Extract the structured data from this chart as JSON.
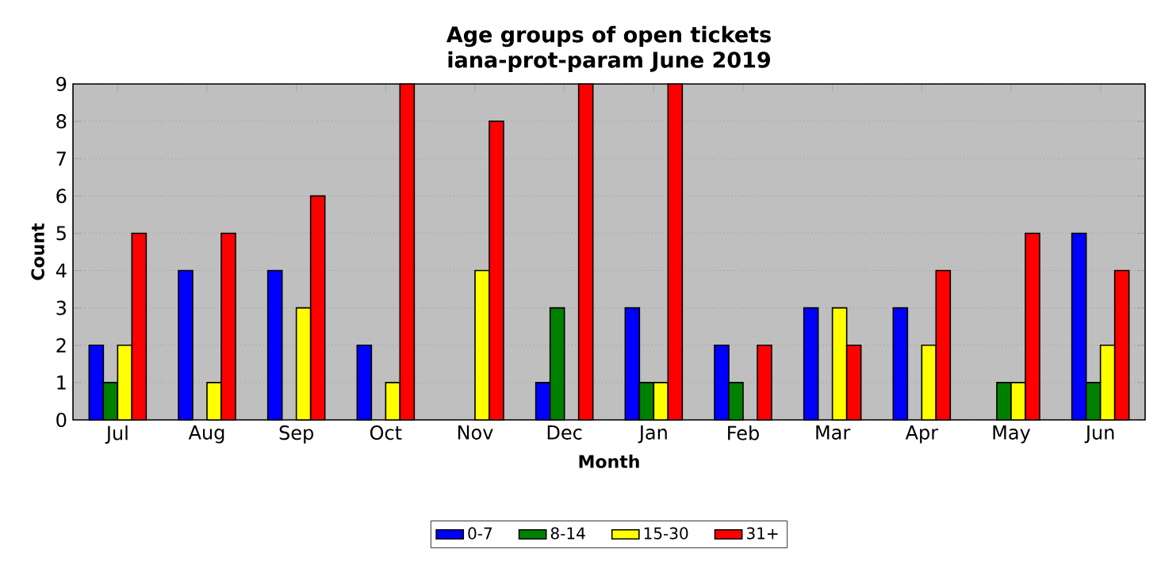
{
  "chart_data": {
    "type": "bar",
    "title": "Age groups of open tickets",
    "subtitle": "iana-prot-param June 2019",
    "xlabel": "Month",
    "ylabel": "Count",
    "categories": [
      "Jul",
      "Aug",
      "Sep",
      "Oct",
      "Nov",
      "Dec",
      "Jan",
      "Feb",
      "Mar",
      "Apr",
      "May",
      "Jun"
    ],
    "series": [
      {
        "name": "0-7",
        "color": "#0000ff",
        "values": [
          2,
          4,
          4,
          2,
          0,
          1,
          3,
          2,
          3,
          3,
          0,
          5
        ]
      },
      {
        "name": "8-14",
        "color": "#008000",
        "values": [
          1,
          0,
          0,
          0,
          0,
          3,
          1,
          1,
          0,
          0,
          1,
          1
        ]
      },
      {
        "name": "15-30",
        "color": "#ffff00",
        "values": [
          2,
          1,
          3,
          1,
          4,
          0,
          1,
          0,
          3,
          2,
          1,
          2
        ]
      },
      {
        "name": "31+",
        "color": "#ff0000",
        "values": [
          5,
          5,
          6,
          9,
          8,
          9,
          9,
          2,
          2,
          4,
          5,
          4
        ]
      }
    ],
    "ylim": [
      0,
      9
    ],
    "yticks": [
      0,
      1,
      2,
      3,
      4,
      5,
      6,
      7,
      8,
      9
    ],
    "grid": "y",
    "legend": "bottom"
  }
}
